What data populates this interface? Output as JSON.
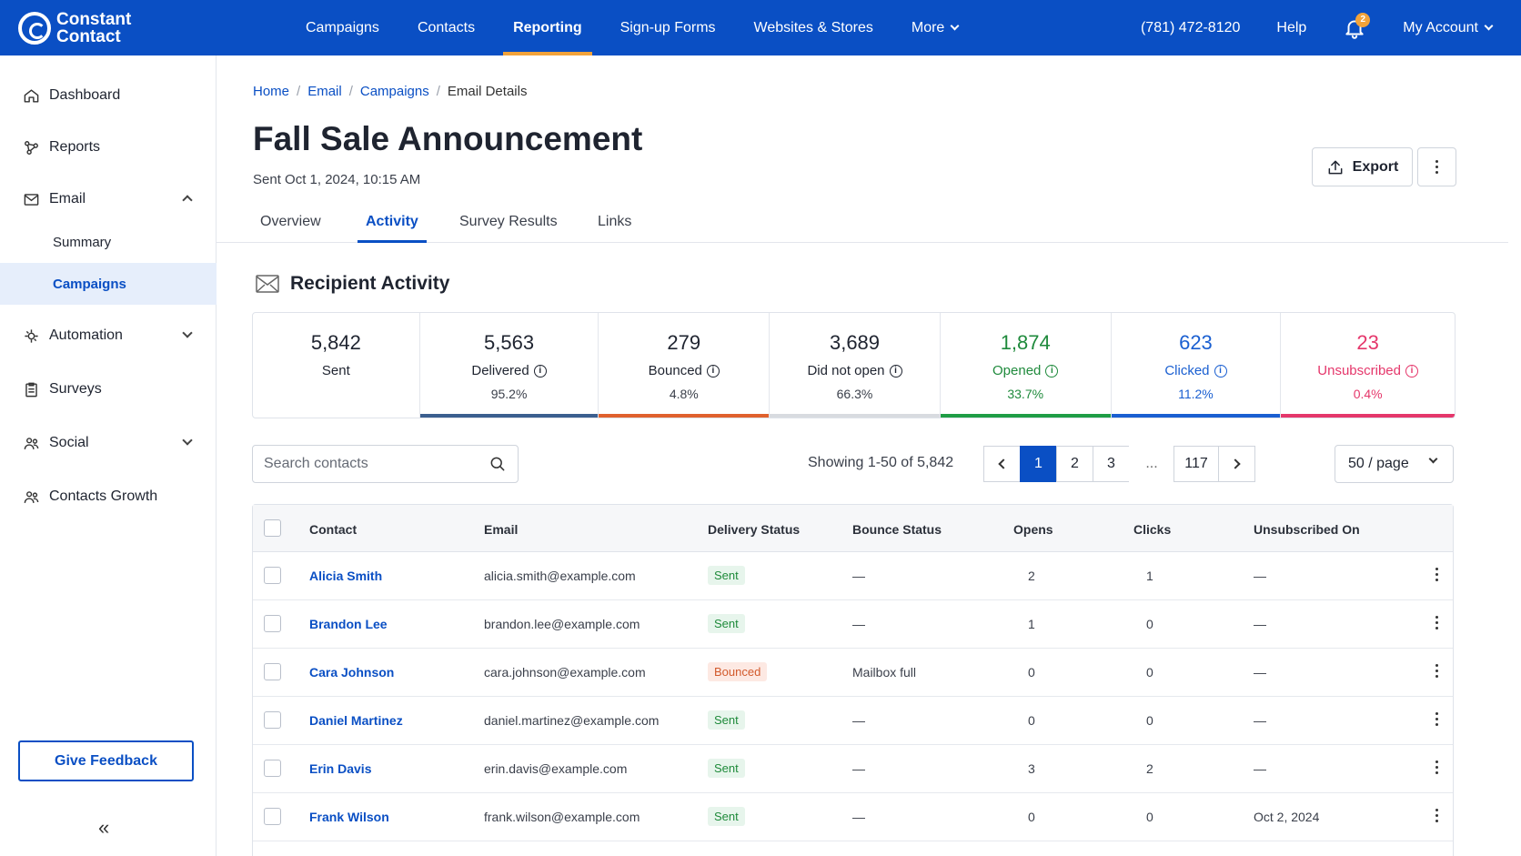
{
  "brand": {
    "name_line1": "Constant",
    "name_line2": "Contact",
    "primary": "#0a4fc4",
    "accent": "#f2a33a"
  },
  "topnav": {
    "items": [
      {
        "label": "Campaigns"
      },
      {
        "label": "Contacts"
      },
      {
        "label": "Reporting",
        "active": true
      },
      {
        "label": "Sign-up Forms"
      },
      {
        "label": "Websites & Stores"
      },
      {
        "label": "More",
        "dropdown": true
      }
    ],
    "phone": "(781) 472-8120",
    "help": "Help",
    "notifications": {
      "count": "2",
      "icon": "bell-icon"
    },
    "account": "My Account"
  },
  "sidebar": {
    "dashboard": "Dashboard",
    "reports": "Reports",
    "email": "Email",
    "email_sub": {
      "summary": "Summary",
      "campaigns": "Campaigns"
    },
    "automation": "Automation",
    "surveys": "Surveys",
    "social": "Social",
    "contacts_growth": "Contacts Growth",
    "feedback": "Give Feedback",
    "collapse": "«"
  },
  "breadcrumb": {
    "home": "Home",
    "email": "Email",
    "campaigns": "Campaigns",
    "current": "Email Details",
    "sep": "/"
  },
  "page": {
    "title": "Fall Sale Announcement",
    "sent": "Sent Oct 1, 2024, 10:15 AM"
  },
  "actions": {
    "export": "Export"
  },
  "tabs": {
    "overview": "Overview",
    "activity": "Activity",
    "survey": "Survey Results",
    "links": "Links"
  },
  "section": {
    "title": "Recipient Activity"
  },
  "stats": [
    {
      "value": "5,842",
      "label": "Sent",
      "pct": "",
      "bar_color": "",
      "text_color": "#1f2430"
    },
    {
      "value": "5,563",
      "label": "Delivered",
      "pct": "95.2%",
      "bar_color": "#3b5f8f",
      "text_color": "#1f2430",
      "info": true
    },
    {
      "value": "279",
      "label": "Bounced",
      "pct": "4.8%",
      "bar_color": "#e0612d",
      "text_color": "#1f2430",
      "info": true
    },
    {
      "value": "3,689",
      "label": "Did not open",
      "pct": "66.3%",
      "bar_color": "#d8dbe0",
      "text_color": "#1f2430",
      "info": true
    },
    {
      "value": "1,874",
      "label": "Opened",
      "pct": "33.7%",
      "bar_color": "#1f9d45",
      "text_color": "#1f8a3c",
      "info": true
    },
    {
      "value": "623",
      "label": "Clicked",
      "pct": "11.2%",
      "bar_color": "#1a5fd1",
      "text_color": "#1a5fd1",
      "info": true
    },
    {
      "value": "23",
      "label": "Unsubscribed",
      "pct": "0.4%",
      "bar_color": "#e5376b",
      "text_color": "#e5376b",
      "info": true
    }
  ],
  "search": {
    "placeholder": "Search contacts"
  },
  "pagination": {
    "showing": "Showing 1-50 of 5,842",
    "pages": [
      "1",
      "2",
      "3"
    ],
    "ellipsis": "...",
    "last": "117",
    "per_page": "50 / page"
  },
  "table": {
    "headers": {
      "contact": "Contact",
      "email": "Email",
      "delivery": "Delivery Status",
      "bounce": "Bounce Status",
      "opens": "Opens",
      "clicks": "Clicks",
      "unsub": "Unsubscribed On"
    },
    "rows": [
      {
        "contact": "Alicia Smith",
        "email": "alicia.smith@example.com",
        "delivery": "Sent",
        "bounce": "—",
        "opens": "2",
        "clicks": "1",
        "unsub": "—"
      },
      {
        "contact": "Brandon Lee",
        "email": "brandon.lee@example.com",
        "delivery": "Sent",
        "bounce": "—",
        "opens": "1",
        "clicks": "0",
        "unsub": "—"
      },
      {
        "contact": "Cara Johnson",
        "email": "cara.johnson@example.com",
        "delivery": "Bounced",
        "bounce": "Mailbox full",
        "opens": "0",
        "clicks": "0",
        "unsub": "—"
      },
      {
        "contact": "Daniel Martinez",
        "email": "daniel.martinez@example.com",
        "delivery": "Sent",
        "bounce": "—",
        "opens": "0",
        "clicks": "0",
        "unsub": "—"
      },
      {
        "contact": "Erin Davis",
        "email": "erin.davis@example.com",
        "delivery": "Sent",
        "bounce": "—",
        "opens": "3",
        "clicks": "2",
        "unsub": "—"
      },
      {
        "contact": "Frank Wilson",
        "email": "frank.wilson@example.com",
        "delivery": "Sent",
        "bounce": "—",
        "opens": "0",
        "clicks": "0",
        "unsub": "Oct 2, 2024"
      }
    ]
  }
}
